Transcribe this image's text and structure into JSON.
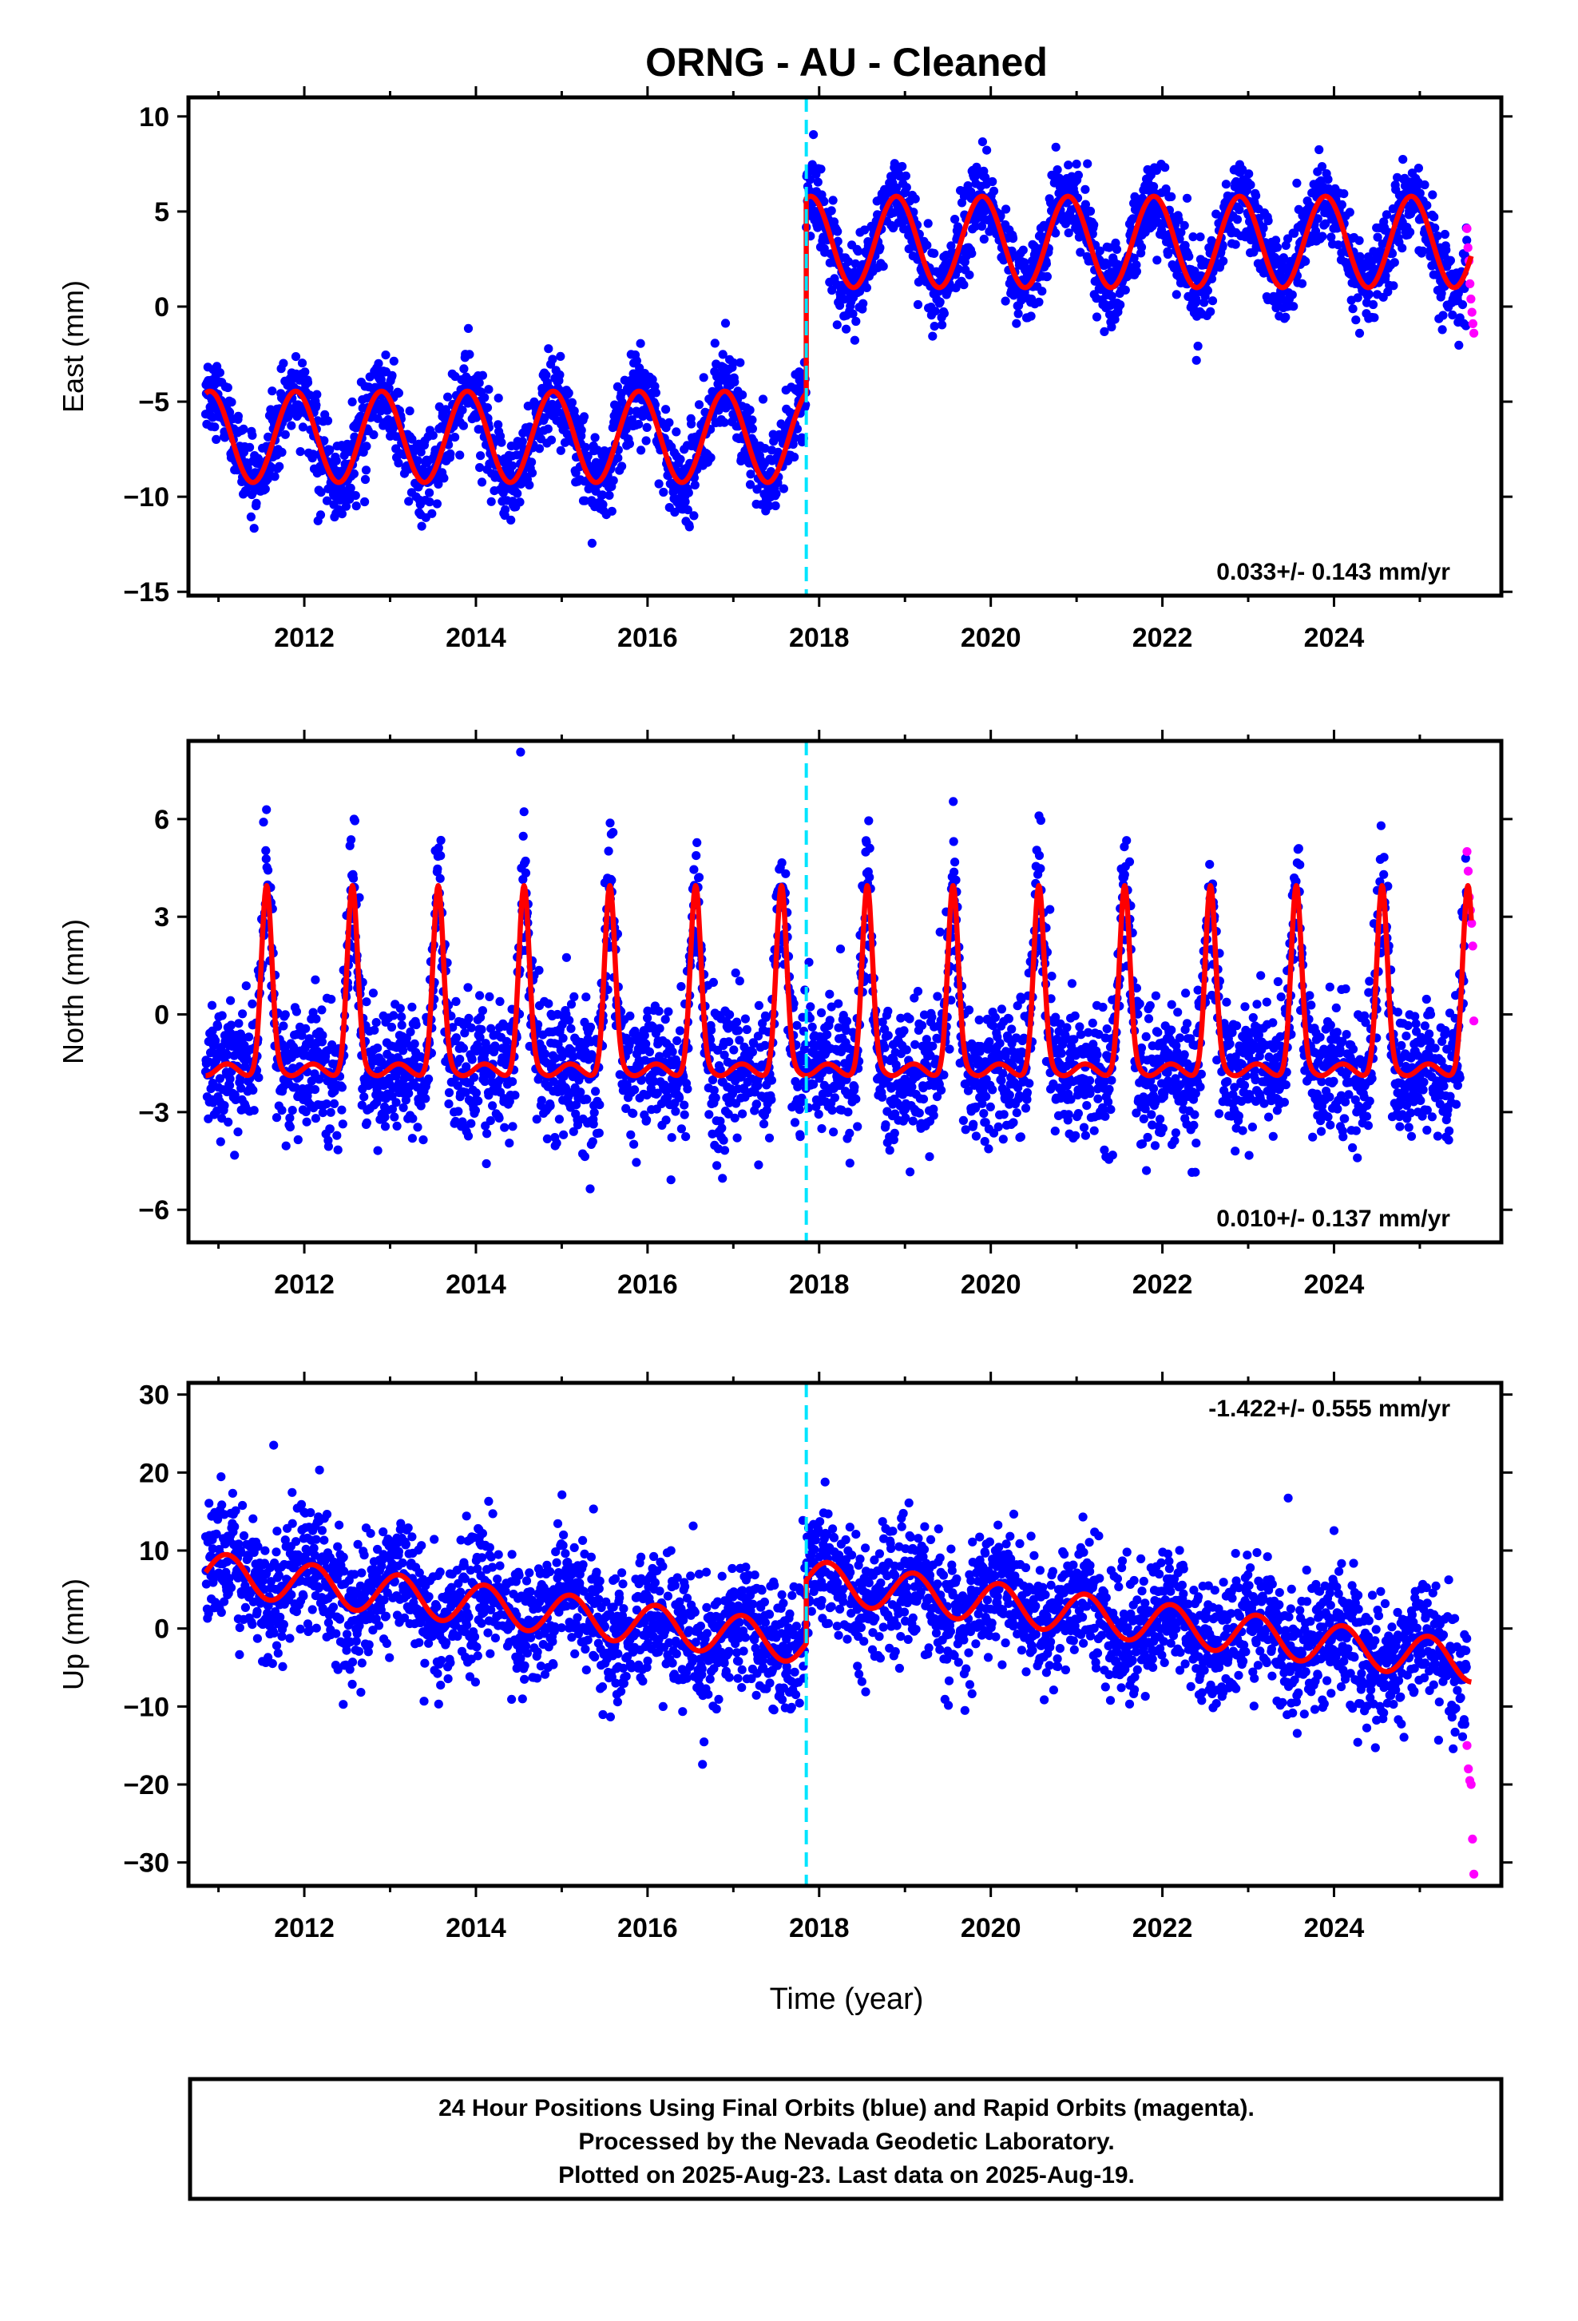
{
  "title": "ORNG  - AU - Cleaned",
  "colors": {
    "final_orbits": "#0000ff",
    "rapid_orbits": "#ff00ff",
    "model": "#ff0000",
    "offset_line": "#00e5ff",
    "frame": "#000000"
  },
  "xlabel": "Time (year)",
  "x_tick_labels": [
    "2012",
    "2014",
    "2016",
    "2018",
    "2020",
    "2022",
    "2024"
  ],
  "footer": {
    "line1": "24 Hour Positions Using Final Orbits (blue) and Rapid Orbits (magenta).",
    "line2": "Processed by the Nevada Geodetic Laboratory.",
    "line3": "Plotted on 2025-Aug-23. Last data on 2025-Aug-19."
  },
  "chart_data": [
    {
      "type": "scatter",
      "component": "east",
      "ylabel": "East (mm)",
      "rate_text": "0.033+/- 0.143 mm/yr",
      "xlim": [
        2010.65,
        2025.95
      ],
      "ylim": [
        -15.2,
        11.0
      ],
      "yticks": [
        10,
        5,
        0,
        -5,
        -10,
        -15
      ],
      "ytick_labels": [
        "10",
        "5",
        "0",
        "−5",
        "−10",
        "−15"
      ],
      "offset_epoch": 2017.85,
      "grid": false,
      "series": [
        {
          "role": "final-orbits",
          "x_range": [
            2010.85,
            2025.55
          ]
        },
        {
          "role": "rapid-orbits",
          "x_range": [
            2025.55,
            2025.63
          ],
          "values": [
            4.1,
            3.1,
            2.4,
            1.2,
            0.4,
            -0.3,
            -0.9,
            -1.4
          ]
        },
        {
          "role": "model",
          "mean_before": -6.85,
          "mean_after": 3.4,
          "amplitude": 2.4,
          "offset_epoch": 2017.85
        }
      ]
    },
    {
      "type": "scatter",
      "component": "north",
      "ylabel": "North (mm)",
      "rate_text": "0.010+/- 0.137 mm/yr",
      "xlim": [
        2010.65,
        2025.95
      ],
      "ylim": [
        -7.0,
        8.4
      ],
      "yticks": [
        6,
        3,
        0,
        -3,
        -6
      ],
      "ytick_labels": [
        "6",
        "3",
        "0",
        "−3",
        "−6"
      ],
      "offset_epoch": 2017.85,
      "grid": false,
      "series": [
        {
          "role": "final-orbits",
          "x_range": [
            2010.85,
            2025.55
          ]
        },
        {
          "role": "rapid-orbits",
          "x_range": [
            2025.55,
            2025.63
          ],
          "values": [
            5.0,
            4.4,
            3.6,
            3.2,
            2.8,
            2.1,
            -0.2
          ]
        },
        {
          "role": "model",
          "peak": 3.8,
          "trough": -1.7,
          "offset_epoch": 2017.85
        }
      ]
    },
    {
      "type": "scatter",
      "component": "up",
      "ylabel": "Up (mm)",
      "rate_text": "-1.422+/- 0.555 mm/yr",
      "xlim": [
        2010.65,
        2025.95
      ],
      "ylim": [
        -33.0,
        31.5
      ],
      "yticks": [
        30,
        20,
        10,
        0,
        -10,
        -20,
        -30
      ],
      "ytick_labels": [
        "30",
        "20",
        "10",
        "0",
        "−10",
        "−20",
        "−30"
      ],
      "offset_epoch": 2017.85,
      "grid": false,
      "series": [
        {
          "role": "final-orbits",
          "x_range": [
            2010.85,
            2025.55
          ]
        },
        {
          "role": "rapid-orbits",
          "x_range": [
            2025.55,
            2025.63
          ],
          "values": [
            -15.0,
            -18.0,
            -19.5,
            -20.0,
            -27.0,
            -31.5
          ]
        },
        {
          "role": "model",
          "start_before": 7.2,
          "slope_before": -1.3,
          "start_after": 6.2,
          "slope_after": -1.35,
          "amplitude": 2.6,
          "offset_epoch": 2017.85
        }
      ]
    }
  ]
}
